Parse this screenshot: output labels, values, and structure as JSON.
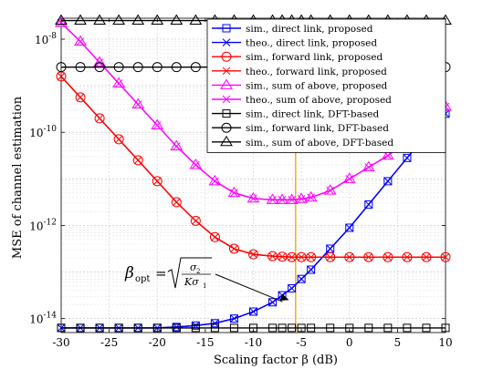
{
  "chart_data": {
    "type": "line",
    "xlabel": "Scaling factor β (dB)",
    "ylabel": "MSE of channel estimation",
    "xlim": [
      -30,
      10
    ],
    "ylim_log10": [
      -14.3,
      -7.55
    ],
    "yscale": "log",
    "grid": true,
    "legend_position": "top-right",
    "x_ticks": [
      -30,
      -25,
      -20,
      -15,
      -10,
      -5,
      0,
      5,
      10
    ],
    "y_ticks": [
      {
        "base": "10",
        "exp": "-14",
        "log10": -14
      },
      {
        "base": "10",
        "exp": "-12",
        "log10": -12
      },
      {
        "base": "10",
        "exp": "-10",
        "log10": -10
      },
      {
        "base": "10",
        "exp": "-8",
        "log10": -8
      }
    ],
    "x": [
      -30,
      -28,
      -26,
      -24,
      -22,
      -20,
      -18,
      -16,
      -14,
      -12,
      -10,
      -8,
      -7,
      -6,
      -5,
      -4,
      -2,
      0,
      2,
      4,
      6,
      8,
      10
    ],
    "series": [
      {
        "name": "sim., direct link, proposed",
        "color": "#0000ff",
        "marker": "square",
        "log10": [
          -14.2,
          -14.2,
          -14.2,
          -14.2,
          -14.2,
          -14.2,
          -14.18,
          -14.15,
          -14.1,
          -14.0,
          -13.85,
          -13.65,
          -13.5,
          -13.35,
          -13.15,
          -12.95,
          -12.5,
          -12.05,
          -11.55,
          -11.05,
          -10.55,
          -10.05,
          -9.6
        ]
      },
      {
        "name": "theo., direct link, proposed",
        "color": "#0000ff",
        "marker": "x",
        "log10": [
          -14.2,
          -14.2,
          -14.2,
          -14.2,
          -14.2,
          -14.2,
          -14.18,
          -14.15,
          -14.1,
          -14.0,
          -13.85,
          -13.65,
          -13.5,
          -13.35,
          -13.15,
          -12.95,
          -12.5,
          -12.05,
          -11.55,
          -11.05,
          -10.55,
          -10.05,
          -9.6
        ]
      },
      {
        "name": "sim., forward link, proposed",
        "color": "#ff0000",
        "marker": "circle",
        "log10": [
          -8.8,
          -9.25,
          -9.7,
          -10.15,
          -10.6,
          -11.05,
          -11.5,
          -11.9,
          -12.25,
          -12.5,
          -12.62,
          -12.66,
          -12.67,
          -12.68,
          -12.68,
          -12.68,
          -12.68,
          -12.68,
          -12.68,
          -12.68,
          -12.68,
          -12.68,
          -12.68
        ]
      },
      {
        "name": "theo., forward link, proposed",
        "color": "#ff0000",
        "marker": "x",
        "log10": [
          -8.8,
          -9.25,
          -9.7,
          -10.15,
          -10.6,
          -11.05,
          -11.5,
          -11.9,
          -12.25,
          -12.5,
          -12.62,
          -12.66,
          -12.67,
          -12.68,
          -12.68,
          -12.68,
          -12.68,
          -12.68,
          -12.68,
          -12.68,
          -12.68,
          -12.68,
          -12.68
        ]
      },
      {
        "name": "sim., sum of above, proposed",
        "color": "#ff00ff",
        "marker": "triangle",
        "log10": [
          -7.65,
          -8.05,
          -8.5,
          -8.95,
          -9.4,
          -9.85,
          -10.3,
          -10.7,
          -11.05,
          -11.3,
          -11.42,
          -11.45,
          -11.45,
          -11.45,
          -11.43,
          -11.4,
          -11.25,
          -11.0,
          -10.75,
          -10.5,
          -10.2,
          -9.85,
          -9.45
        ]
      },
      {
        "name": "theo., sum of above, proposed",
        "color": "#ff00ff",
        "marker": "x",
        "log10": [
          -7.65,
          -8.05,
          -8.5,
          -8.95,
          -9.4,
          -9.85,
          -10.3,
          -10.7,
          -11.05,
          -11.3,
          -11.42,
          -11.45,
          -11.45,
          -11.45,
          -11.43,
          -11.4,
          -11.25,
          -11.0,
          -10.75,
          -10.5,
          -10.2,
          -9.85,
          -9.45
        ]
      },
      {
        "name": "sim., direct link, DFT-based",
        "color": "#000000",
        "marker": "square",
        "log10": [
          -14.2,
          -14.2,
          -14.2,
          -14.2,
          -14.2,
          -14.2,
          -14.2,
          -14.2,
          -14.2,
          -14.2,
          -14.2,
          -14.2,
          -14.2,
          -14.2,
          -14.2,
          -14.2,
          -14.2,
          -14.2,
          -14.2,
          -14.2,
          -14.2,
          -14.2,
          -14.2
        ]
      },
      {
        "name": "sim., forward link, DFT-based",
        "color": "#000000",
        "marker": "circle",
        "log10": [
          -8.6,
          -8.6,
          -8.6,
          -8.6,
          -8.6,
          -8.6,
          -8.6,
          -8.6,
          -8.6,
          -8.6,
          -8.6,
          -8.6,
          -8.6,
          -8.6,
          -8.6,
          -8.6,
          -8.6,
          -8.6,
          -8.6,
          -8.6,
          -8.6,
          -8.6,
          -8.6
        ]
      },
      {
        "name": "sim., sum of above, DFT-based",
        "color": "#000000",
        "marker": "triangle",
        "log10": [
          -7.6,
          -7.6,
          -7.6,
          -7.6,
          -7.6,
          -7.6,
          -7.6,
          -7.6,
          -7.6,
          -7.6,
          -7.6,
          -7.6,
          -7.6,
          -7.6,
          -7.6,
          -7.6,
          -7.6,
          -7.6,
          -7.6,
          -7.6,
          -7.6,
          -7.6,
          -7.6
        ]
      }
    ],
    "vertical_line": {
      "x": -5.6,
      "color": "#f0a000"
    },
    "annotation": {
      "beta": "β",
      "opt": "opt",
      "equals": "=",
      "num": "σ",
      "num_sub": "2",
      "den": "Kσ",
      "den_sub": "1",
      "arrow_to_x": -6.3,
      "arrow_to_log10": -13.6
    }
  }
}
